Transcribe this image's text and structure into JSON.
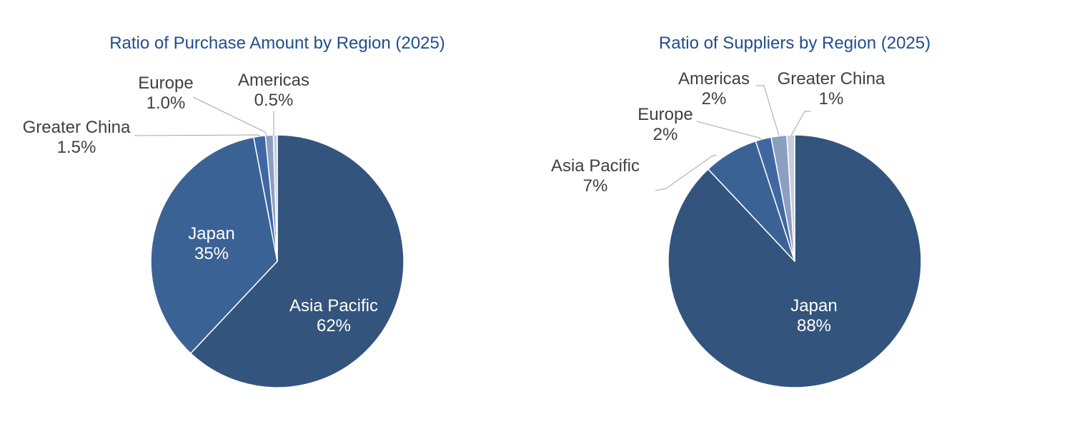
{
  "chart_data": [
    {
      "type": "pie",
      "title": "Ratio of Purchase Amount by Region (2025)",
      "slices": [
        {
          "name": "Asia Pacific",
          "value": 62,
          "label": "62%",
          "color": "#33547d"
        },
        {
          "name": "Japan",
          "value": 35,
          "label": "35%",
          "color": "#3b6295"
        },
        {
          "name": "Greater China",
          "value": 1.5,
          "label": "1.5%",
          "color": "#3f68a3"
        },
        {
          "name": "Europe",
          "value": 1.0,
          "label": "1.0%",
          "color": "#8d9fc0"
        },
        {
          "name": "Americas",
          "value": 0.5,
          "label": "0.5%",
          "color": "#c5cede"
        }
      ]
    },
    {
      "type": "pie",
      "title": "Ratio of Suppliers by Region (2025)",
      "slices": [
        {
          "name": "Japan",
          "value": 88,
          "label": "88%",
          "color": "#33547d"
        },
        {
          "name": "Asia Pacific",
          "value": 7,
          "label": "7%",
          "color": "#3b6295"
        },
        {
          "name": "Europe",
          "value": 2,
          "label": "2%",
          "color": "#3f68a3"
        },
        {
          "name": "Americas",
          "value": 2,
          "label": "2%",
          "color": "#8d9fc0"
        },
        {
          "name": "Greater China",
          "value": 1,
          "label": "1%",
          "color": "#c5cede"
        }
      ]
    }
  ]
}
